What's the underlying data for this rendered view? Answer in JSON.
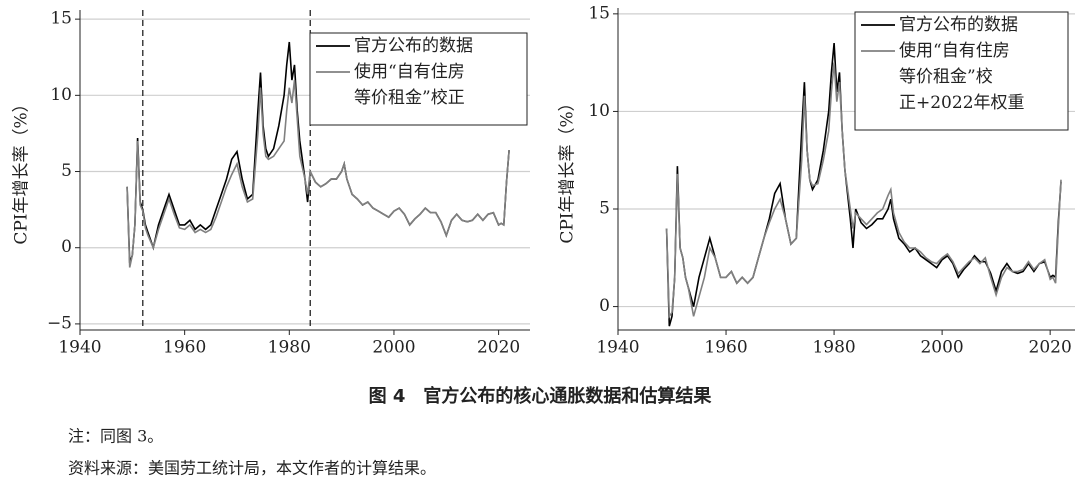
{
  "chart_data": [
    {
      "type": "line",
      "ylabel": "CPI年增长率（%）",
      "xlim": [
        1940,
        2026
      ],
      "xticks": [
        1940,
        1960,
        1980,
        2000,
        2020
      ],
      "ylim": [
        -5.4,
        15.6
      ],
      "yticks": [
        {
          "value": -5,
          "label": "−5"
        },
        0,
        5,
        10,
        15
      ],
      "grid": true,
      "vlines": [
        1952,
        1984
      ],
      "x": [
        1949,
        1949.5,
        1950,
        1950.5,
        1951,
        1951.5,
        1952,
        1952.5,
        1953,
        1954,
        1955,
        1956,
        1957,
        1958,
        1959,
        1960,
        1961,
        1962,
        1963,
        1964,
        1965,
        1966,
        1967,
        1968,
        1969,
        1970,
        1971,
        1972,
        1973,
        1974,
        1974.5,
        1975,
        1975.5,
        1976,
        1977,
        1978,
        1979,
        1979.5,
        1980,
        1980.5,
        1981,
        1981.5,
        1982,
        1983,
        1983.5,
        1984,
        1985,
        1986,
        1987,
        1988,
        1989,
        1990,
        1990.5,
        1991,
        1992,
        1993,
        1994,
        1995,
        1996,
        1997,
        1998,
        1999,
        2000,
        2001,
        2002,
        2003,
        2004,
        2005,
        2006,
        2007,
        2008,
        2009,
        2010,
        2011,
        2012,
        2013,
        2014,
        2015,
        2016,
        2017,
        2018,
        2019,
        2020,
        2020.5,
        2021,
        2021.5,
        2022
      ],
      "series": [
        {
          "name": "官方公布的数据",
          "color": "#000000",
          "values": [
            4,
            -1,
            -0.5,
            1.5,
            7.2,
            3,
            2.5,
            1.5,
            1,
            0,
            1.5,
            2.5,
            3.5,
            2.5,
            1.5,
            1.5,
            1.8,
            1.2,
            1.5,
            1.2,
            1.5,
            2.5,
            3.5,
            4.5,
            5.8,
            6.3,
            4.5,
            3.2,
            3.5,
            9,
            11.5,
            8,
            6.5,
            6,
            6.5,
            8,
            10,
            12,
            13.5,
            11,
            12,
            9,
            7,
            4.5,
            3,
            5,
            4.3,
            4,
            4.2,
            4.5,
            4.5,
            5,
            5.5,
            4.5,
            3.5,
            3.2,
            2.8,
            3,
            2.6,
            2.4,
            2.2,
            2,
            2.4,
            2.6,
            2.2,
            1.5,
            1.9,
            2.2,
            2.6,
            2.3,
            2.3,
            1.7,
            0.8,
            1.8,
            2.2,
            1.8,
            1.7,
            1.8,
            2.2,
            1.8,
            2.2,
            2.3,
            1.5,
            1.6,
            1.5,
            4.3,
            6.4
          ]
        },
        {
          "name": "使用“自有住房\n等价租金”校正",
          "color": "#808080",
          "values": [
            4,
            -1.3,
            -0.5,
            1.5,
            7,
            2.8,
            2.4,
            1.3,
            0.8,
            0,
            1.2,
            2.2,
            3.2,
            2.2,
            1.3,
            1.2,
            1.5,
            1,
            1.2,
            1,
            1.2,
            2,
            3,
            4,
            4.8,
            5.5,
            4,
            3,
            3.2,
            7.5,
            10.5,
            7.5,
            6,
            5.8,
            6,
            6.5,
            7,
            9,
            10.5,
            9.5,
            11,
            8.5,
            6,
            4.5,
            3.5,
            5,
            4.3,
            4,
            4.2,
            4.5,
            4.5,
            5,
            5.5,
            4.5,
            3.5,
            3.2,
            2.8,
            3,
            2.6,
            2.4,
            2.2,
            2,
            2.4,
            2.6,
            2.2,
            1.5,
            1.9,
            2.2,
            2.6,
            2.3,
            2.3,
            1.7,
            0.8,
            1.8,
            2.2,
            1.8,
            1.7,
            1.8,
            2.2,
            1.8,
            2.2,
            2.3,
            1.5,
            1.6,
            1.5,
            4.3,
            6.4
          ]
        }
      ]
    },
    {
      "type": "line",
      "ylabel": "CPI年增长率（%）",
      "xlim": [
        1940,
        2024.6
      ],
      "xticks": [
        1940,
        1960,
        1980,
        2000,
        2020
      ],
      "ylim": [
        -1.2,
        15.3
      ],
      "yticks": [
        0,
        5,
        10,
        15
      ],
      "grid": true,
      "x": [
        1949,
        1949.5,
        1950,
        1950.5,
        1951,
        1951.5,
        1952,
        1952.5,
        1953,
        1954,
        1955,
        1956,
        1957,
        1958,
        1959,
        1960,
        1961,
        1962,
        1963,
        1964,
        1965,
        1966,
        1967,
        1968,
        1969,
        1970,
        1971,
        1972,
        1973,
        1974,
        1974.5,
        1975,
        1975.5,
        1976,
        1977,
        1978,
        1979,
        1979.5,
        1980,
        1980.5,
        1981,
        1981.5,
        1982,
        1983,
        1983.5,
        1984,
        1985,
        1986,
        1987,
        1988,
        1989,
        1990,
        1990.5,
        1991,
        1992,
        1993,
        1994,
        1995,
        1996,
        1997,
        1998,
        1999,
        2000,
        2001,
        2002,
        2003,
        2004,
        2005,
        2006,
        2007,
        2008,
        2009,
        2010,
        2011,
        2012,
        2013,
        2014,
        2015,
        2016,
        2017,
        2018,
        2019,
        2020,
        2020.5,
        2021,
        2021.5,
        2022
      ],
      "series": [
        {
          "name": "官方公布的数据",
          "color": "#000000",
          "values": [
            4,
            -1,
            -0.5,
            1.5,
            7.2,
            3,
            2.5,
            1.5,
            1,
            0,
            1.5,
            2.5,
            3.5,
            2.5,
            1.5,
            1.5,
            1.8,
            1.2,
            1.5,
            1.2,
            1.5,
            2.5,
            3.5,
            4.5,
            5.8,
            6.3,
            4.5,
            3.2,
            3.5,
            9,
            11.5,
            8,
            6.5,
            6,
            6.5,
            8,
            10,
            12,
            13.5,
            11,
            12,
            9,
            7,
            4.5,
            3,
            5,
            4.3,
            4,
            4.2,
            4.5,
            4.5,
            5,
            5.5,
            4.5,
            3.5,
            3.2,
            2.8,
            3,
            2.6,
            2.4,
            2.2,
            2,
            2.4,
            2.6,
            2.2,
            1.5,
            1.9,
            2.2,
            2.6,
            2.3,
            2.3,
            1.7,
            0.8,
            1.8,
            2.2,
            1.8,
            1.7,
            1.8,
            2.2,
            1.8,
            2.2,
            2.3,
            1.5,
            1.6,
            1.5,
            4.3,
            6.4
          ]
        },
        {
          "name": "使用“自有住房\n等价租金”校\n正+2022年权重",
          "color": "#808080",
          "values": [
            4,
            -0.5,
            -0.3,
            1.5,
            6.8,
            3,
            2.5,
            1.5,
            1,
            -0.5,
            0.5,
            1.5,
            3,
            2.5,
            1.5,
            1.5,
            1.8,
            1.2,
            1.5,
            1.2,
            1.5,
            2.5,
            3.5,
            4.3,
            5,
            5.5,
            4.5,
            3.2,
            3.5,
            7.5,
            10.8,
            8,
            6.5,
            6.2,
            6.3,
            7.5,
            9,
            11,
            12.5,
            10.5,
            11.5,
            9,
            7,
            5,
            4,
            4.8,
            4.5,
            4.2,
            4.5,
            4.8,
            5,
            5.7,
            6,
            4.8,
            3.8,
            3.3,
            3,
            3,
            2.8,
            2.5,
            2.3,
            2.2,
            2.5,
            2.7,
            2.3,
            1.7,
            2,
            2.3,
            2.5,
            2.2,
            2.5,
            1.5,
            0.6,
            1.5,
            2,
            1.8,
            1.8,
            1.9,
            2.3,
            1.9,
            2.2,
            2.4,
            1.4,
            1.5,
            1.2,
            4,
            6.5
          ]
        }
      ]
    }
  ],
  "figure_caption": "图 4　官方公布的核心通胀数据和估算结果",
  "notes": [
    "注：同图 3。",
    "资料来源：美国劳工统计局，本文作者的计算结果。"
  ]
}
